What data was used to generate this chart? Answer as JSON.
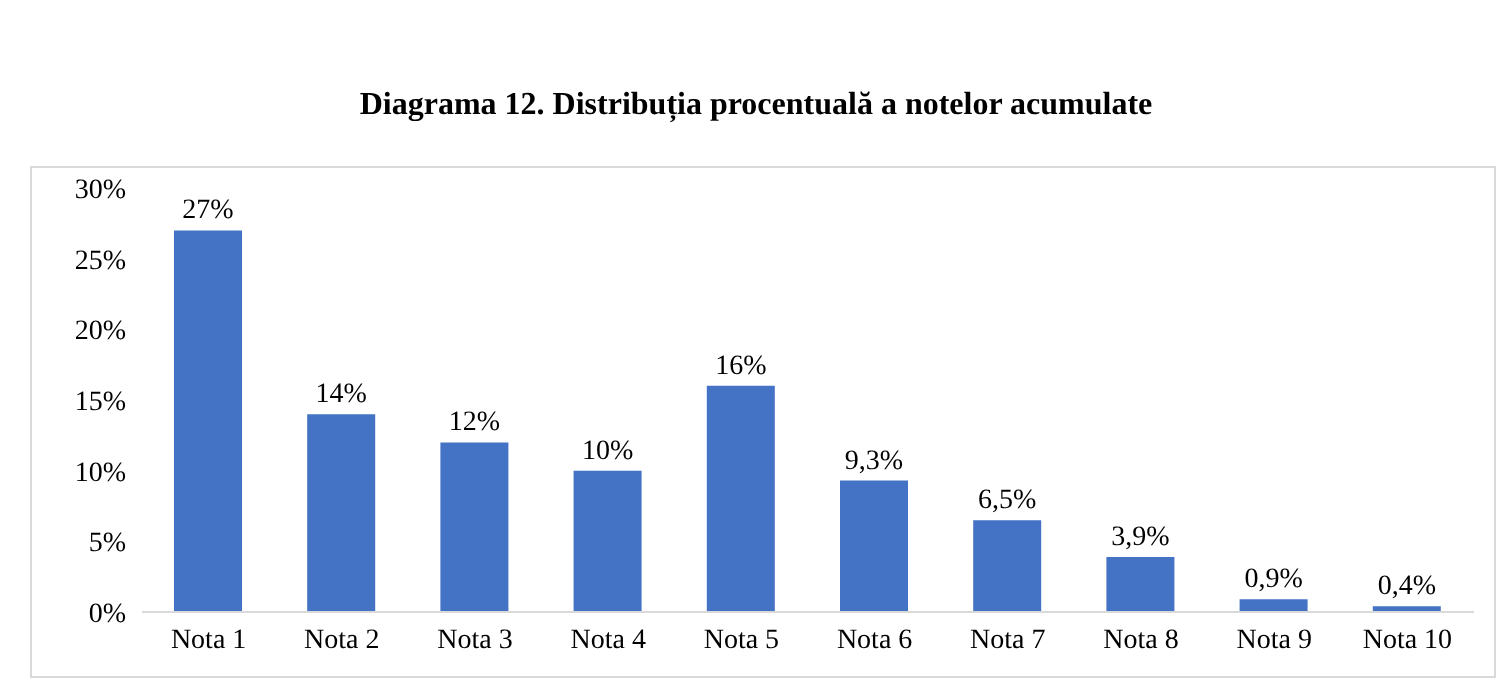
{
  "chart_data": {
    "type": "bar",
    "title": "Diagrama 12. Distribuția procentuală a notelor acumulate",
    "categories": [
      "Nota 1",
      "Nota 2",
      "Nota 3",
      "Nota 4",
      "Nota 5",
      "Nota 6",
      "Nota 7",
      "Nota 8",
      "Nota 9",
      "Nota 10"
    ],
    "values": [
      27,
      14,
      12,
      10,
      16,
      9.3,
      6.5,
      3.9,
      0.9,
      0.4
    ],
    "value_labels": [
      "27%",
      "14%",
      "12%",
      "10%",
      "16%",
      "9,3%",
      "6,5%",
      "3,9%",
      "0,9%",
      "0,4%"
    ],
    "color": "#4472c4",
    "ylim": [
      0,
      30
    ],
    "yticks": [
      {
        "value": 0,
        "label": "0%"
      },
      {
        "value": 5,
        "label": "5%"
      },
      {
        "value": 10,
        "label": "10%"
      },
      {
        "value": 15,
        "label": "15%"
      },
      {
        "value": 20,
        "label": "20%"
      },
      {
        "value": 25,
        "label": "25%"
      },
      {
        "value": 30,
        "label": "30%"
      }
    ],
    "grid": false,
    "legend": false
  }
}
